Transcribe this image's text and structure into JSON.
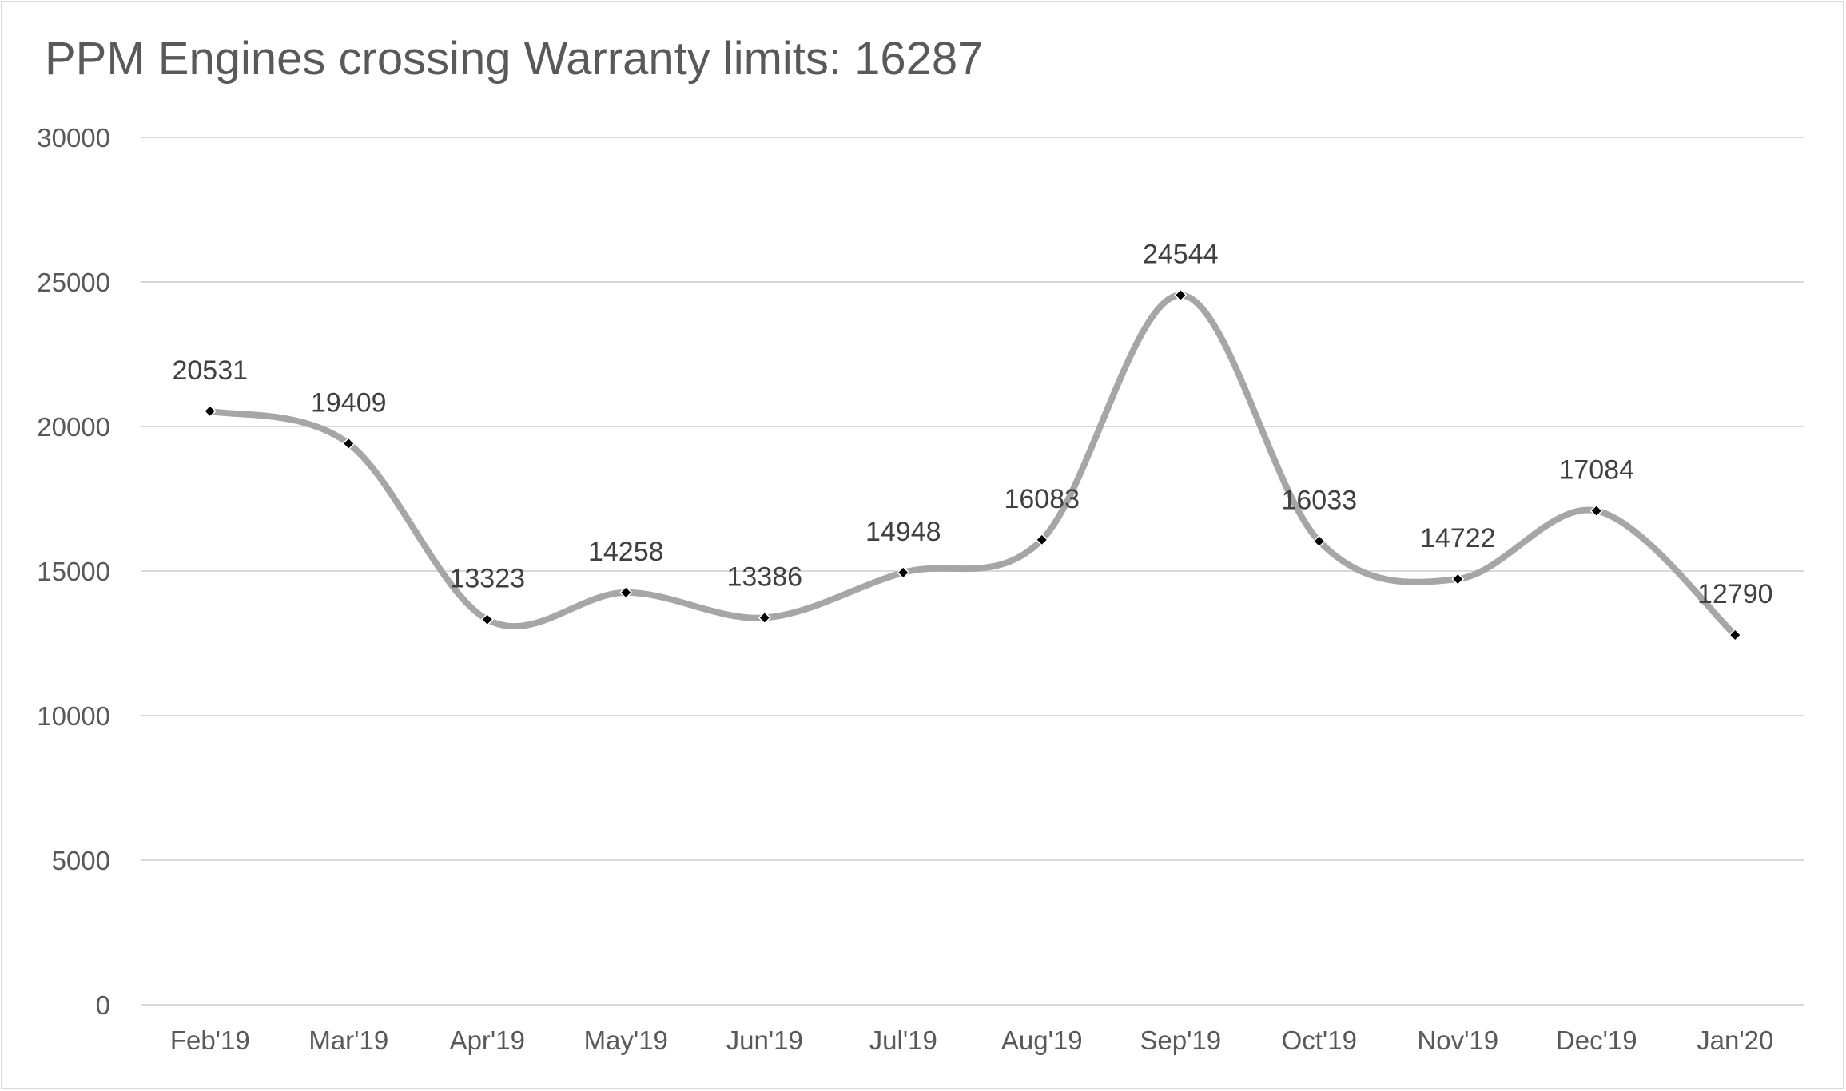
{
  "chart_data": {
    "type": "line",
    "title": "PPM Engines crossing Warranty limits: 16287",
    "categories": [
      "Feb'19",
      "Mar'19",
      "Apr'19",
      "May'19",
      "Jun'19",
      "Jul'19",
      "Aug'19",
      "Sep'19",
      "Oct'19",
      "Nov'19",
      "Dec'19",
      "Jan'20"
    ],
    "series": [
      {
        "values": [
          20531,
          19409,
          13323,
          14258,
          13386,
          14948,
          16083,
          24544,
          16033,
          14722,
          17084,
          12790
        ],
        "color": "#a6a6a6",
        "marker_color": "#000000",
        "smooth": true
      }
    ],
    "ylim": [
      0,
      30000
    ],
    "yticks": [
      0,
      5000,
      10000,
      15000,
      20000,
      25000,
      30000
    ],
    "grid": true,
    "data_labels": true,
    "legend": "none",
    "xlabel": "",
    "ylabel": ""
  }
}
